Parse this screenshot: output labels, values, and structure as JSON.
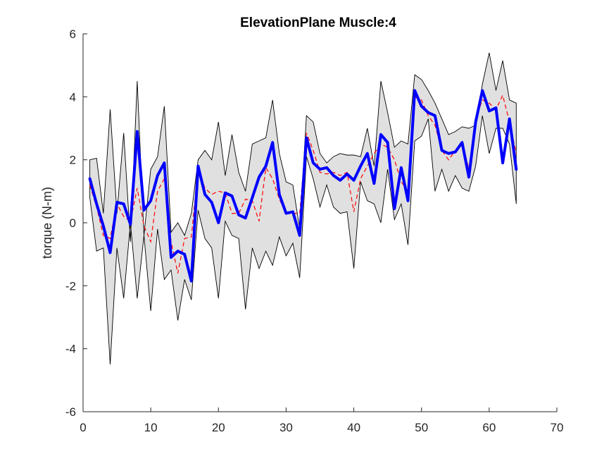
{
  "chart_data": {
    "type": "line",
    "title": "ElevationPlane Muscle:4",
    "xlabel": "",
    "ylabel": "torque (N-m)",
    "xlim": [
      0,
      70
    ],
    "ylim": [
      -6,
      6
    ],
    "xticks": [
      0,
      10,
      20,
      30,
      40,
      50,
      60,
      70
    ],
    "yticks": [
      -6,
      -4,
      -2,
      0,
      2,
      4,
      6
    ],
    "grid": false,
    "legend": "none",
    "colors": {
      "band_fill": "#e0e0e0",
      "band_edge": "#000000",
      "mean": "#0000ff",
      "reference": "#ff0000",
      "axis": "#262626"
    },
    "x": [
      1,
      2,
      3,
      4,
      5,
      6,
      7,
      8,
      9,
      10,
      11,
      12,
      13,
      14,
      15,
      16,
      17,
      18,
      19,
      20,
      21,
      22,
      23,
      24,
      25,
      26,
      27,
      28,
      29,
      30,
      31,
      32,
      33,
      34,
      35,
      36,
      37,
      38,
      39,
      40,
      41,
      42,
      43,
      44,
      45,
      46,
      47,
      48,
      49,
      50,
      51,
      52,
      53,
      54,
      55,
      56,
      57,
      58,
      59,
      60,
      61,
      62,
      63,
      64
    ],
    "series": [
      {
        "role": "band-upper",
        "values": [
          2.0,
          2.05,
          0.3,
          3.6,
          0.3,
          2.85,
          -0.6,
          4.5,
          -0.4,
          1.7,
          2.1,
          3.7,
          -0.3,
          0.0,
          -0.4,
          0.3,
          2.0,
          2.3,
          2.0,
          3.2,
          1.5,
          2.8,
          1.6,
          1.0,
          2.5,
          2.6,
          2.7,
          3.9,
          2.2,
          1.3,
          1.2,
          -0.2,
          3.4,
          3.2,
          2.2,
          1.9,
          2.1,
          2.2,
          2.15,
          2.15,
          2.1,
          3.0,
          1.8,
          4.5,
          3.5,
          2.4,
          2.6,
          2.5,
          4.7,
          4.55,
          4.2,
          3.8,
          3.3,
          2.8,
          2.9,
          3.05,
          3.0,
          3.1,
          4.4,
          5.4,
          4.2,
          5.15,
          3.9,
          3.8
        ]
      },
      {
        "role": "band-lower",
        "values": [
          0.8,
          -0.9,
          -0.8,
          -4.5,
          -0.8,
          -2.4,
          0.0,
          -2.4,
          -0.4,
          -2.8,
          -0.2,
          -1.8,
          -1.5,
          -3.1,
          -1.8,
          -2.45,
          0.4,
          -0.5,
          -0.8,
          -2.4,
          0.05,
          -0.4,
          -0.5,
          -2.75,
          -0.8,
          -1.45,
          -0.9,
          -1.35,
          -0.45,
          -1.05,
          -0.65,
          -1.75,
          2.1,
          1.4,
          0.5,
          1.2,
          0.5,
          0.3,
          0.35,
          -1.45,
          1.3,
          0.7,
          0.6,
          0.0,
          1.7,
          0.1,
          0.6,
          -0.7,
          2.6,
          2.75,
          3.3,
          1.0,
          1.7,
          1.0,
          1.5,
          1.1,
          1.0,
          1.8,
          3.4,
          2.2,
          3.0,
          3.0,
          2.5,
          0.6
        ]
      },
      {
        "role": "mean",
        "values": [
          1.4,
          0.6,
          -0.1,
          -0.95,
          0.65,
          0.6,
          -0.05,
          2.9,
          0.4,
          0.7,
          1.5,
          1.9,
          -1.1,
          -0.9,
          -1.0,
          -1.85,
          1.8,
          0.9,
          0.65,
          0.0,
          0.95,
          0.85,
          0.25,
          0.15,
          0.8,
          1.45,
          1.8,
          2.55,
          0.9,
          0.3,
          0.35,
          -0.4,
          2.7,
          1.9,
          1.7,
          1.75,
          1.5,
          1.35,
          1.55,
          1.35,
          1.8,
          2.2,
          1.25,
          2.8,
          2.55,
          0.45,
          1.75,
          0.7,
          4.2,
          3.7,
          3.5,
          3.4,
          2.3,
          2.2,
          2.25,
          2.55,
          1.45,
          3.2,
          4.2,
          3.55,
          3.65,
          1.9,
          3.3,
          1.7
        ]
      },
      {
        "role": "reference",
        "values": [
          1.2,
          0.5,
          -0.4,
          -0.5,
          0.6,
          0.2,
          0.05,
          1.1,
          -0.1,
          -0.6,
          1.0,
          1.4,
          -0.6,
          -1.6,
          -0.5,
          -0.45,
          1.7,
          1.1,
          0.9,
          1.0,
          0.95,
          0.3,
          0.3,
          0.75,
          0.7,
          0.05,
          1.75,
          1.4,
          0.75,
          0.3,
          0.3,
          0.3,
          2.85,
          2.3,
          1.6,
          1.55,
          1.6,
          1.5,
          1.6,
          0.35,
          1.4,
          1.8,
          2.2,
          2.5,
          2.4,
          2.0,
          1.3,
          1.0,
          4.0,
          3.9,
          3.4,
          3.1,
          2.3,
          2.0,
          2.3,
          2.6,
          1.7,
          3.3,
          3.9,
          3.8,
          3.6,
          4.05,
          3.2,
          2.2
        ]
      }
    ]
  }
}
